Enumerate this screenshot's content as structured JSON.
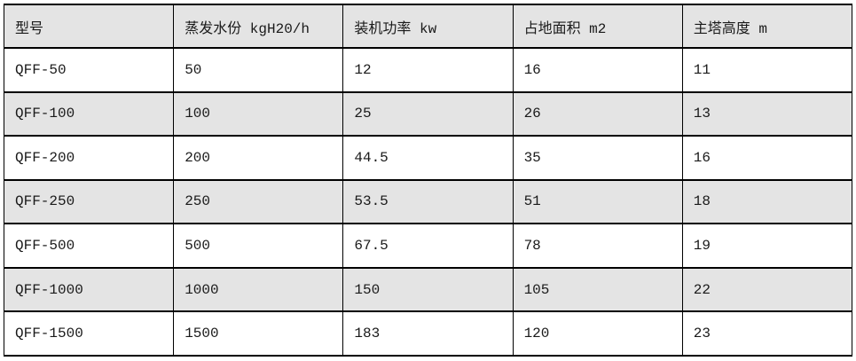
{
  "table": {
    "columns": [
      {
        "label": "型号"
      },
      {
        "label": "蒸发水份 kgH20/h"
      },
      {
        "label": "装机功率 kw"
      },
      {
        "label": "占地面积 m2"
      },
      {
        "label": "主塔高度 m"
      }
    ],
    "rows": [
      [
        "QFF-50",
        "50",
        "12",
        "16",
        "11"
      ],
      [
        "QFF-100",
        "100",
        "25",
        "26",
        "13"
      ],
      [
        "QFF-200",
        "200",
        "44.5",
        "35",
        "16"
      ],
      [
        "QFF-250",
        "250",
        "53.5",
        "51",
        "18"
      ],
      [
        "QFF-500",
        "500",
        "67.5",
        "78",
        "19"
      ],
      [
        "QFF-1000",
        "1000",
        "150",
        "105",
        "22"
      ],
      [
        "QFF-1500",
        "1500",
        "183",
        "120",
        "23"
      ]
    ]
  },
  "colors": {
    "header_bg": "#e4e4e4",
    "row_bg": "#ffffff",
    "row_alt_bg": "#e4e4e4",
    "border": "#000000",
    "text": "#1a1a1a",
    "page_bg": "#ffffff"
  }
}
